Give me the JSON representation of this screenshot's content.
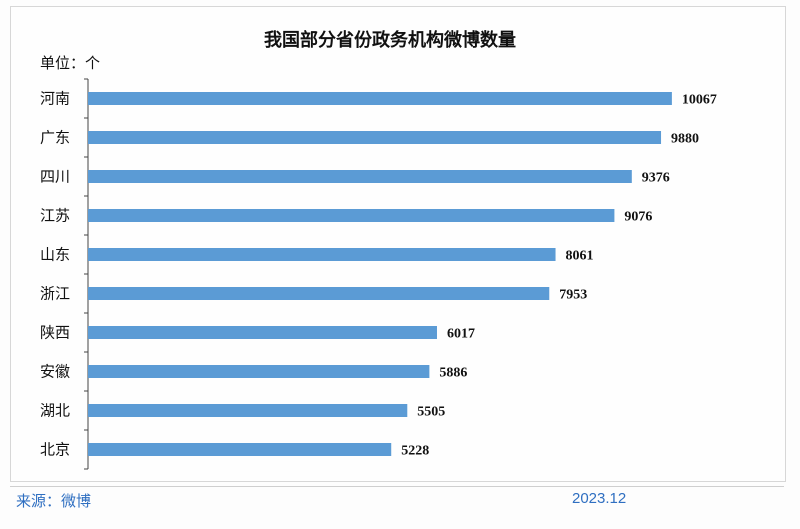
{
  "chart_data": {
    "type": "bar",
    "orientation": "horizontal",
    "title": "我国部分省份政务机构微博数量",
    "unit_label": "单位：个",
    "categories": [
      "河南",
      "广东",
      "四川",
      "江苏",
      "山东",
      "浙江",
      "陕西",
      "安徽",
      "湖北",
      "北京"
    ],
    "values": [
      10067,
      9880,
      9376,
      9076,
      8061,
      7953,
      6017,
      5886,
      5505,
      5228
    ],
    "value_labels": [
      "10067",
      "9880",
      "9376",
      "9076",
      "8061",
      "7953",
      "6017",
      "5886",
      "5505",
      "5228"
    ],
    "bar_color": "#5b9bd5",
    "xlim": [
      0,
      10000
    ],
    "grid": false,
    "legend": "none"
  },
  "footer": {
    "source": "来源：微博",
    "date": "2023.12"
  }
}
